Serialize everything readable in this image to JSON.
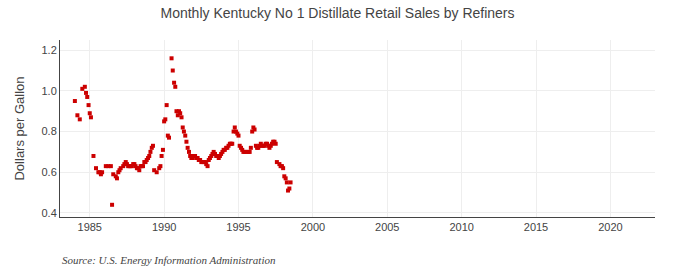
{
  "chart_data": {
    "type": "scatter",
    "title": "Monthly Kentucky No 1 Distillate Retail Sales by Refiners",
    "ylabel": "Dollars per Gallon",
    "annotations": [
      "Source: U.S. Energy Information Administration"
    ],
    "color": "#cc0000",
    "marker": "square",
    "grid": true,
    "xlim": [
      1983.0,
      2023.0
    ],
    "ylim": [
      0.38,
      1.25
    ],
    "xticks": [
      1985,
      1990,
      1995,
      2000,
      2005,
      2010,
      2015,
      2020
    ],
    "yticks": [
      0.4,
      0.6,
      0.8,
      {
        "value": 1.0,
        "label": "1.0"
      },
      1.2
    ],
    "x": [
      1984.0,
      1984.17,
      1984.33,
      1984.5,
      1984.67,
      1984.75,
      1984.83,
      1984.92,
      1985.0,
      1985.08,
      1985.25,
      1985.42,
      1985.58,
      1985.67,
      1985.75,
      1985.83,
      1986.08,
      1986.25,
      1986.42,
      1986.5,
      1986.58,
      1986.75,
      1986.83,
      1986.92,
      1987.0,
      1987.08,
      1987.25,
      1987.33,
      1987.42,
      1987.5,
      1987.58,
      1987.67,
      1987.75,
      1987.83,
      1987.92,
      1988.0,
      1988.08,
      1988.17,
      1988.25,
      1988.33,
      1988.42,
      1988.5,
      1988.58,
      1988.67,
      1988.75,
      1988.83,
      1988.92,
      1989.0,
      1989.08,
      1989.17,
      1989.25,
      1989.33,
      1989.5,
      1989.67,
      1989.75,
      1989.83,
      1989.92,
      1990.0,
      1990.08,
      1990.17,
      1990.25,
      1990.33,
      1990.5,
      1990.58,
      1990.67,
      1990.75,
      1990.83,
      1990.92,
      1991.0,
      1991.08,
      1991.17,
      1991.25,
      1991.33,
      1991.42,
      1991.5,
      1991.58,
      1991.67,
      1991.75,
      1991.83,
      1991.92,
      1992.0,
      1992.08,
      1992.17,
      1992.25,
      1992.33,
      1992.42,
      1992.5,
      1992.58,
      1992.67,
      1992.75,
      1992.83,
      1992.92,
      1993.0,
      1993.08,
      1993.17,
      1993.25,
      1993.33,
      1993.42,
      1993.5,
      1993.58,
      1993.67,
      1993.75,
      1993.83,
      1993.92,
      1994.0,
      1994.08,
      1994.17,
      1994.25,
      1994.33,
      1994.42,
      1994.5,
      1994.58,
      1994.67,
      1994.75,
      1994.83,
      1994.92,
      1995.0,
      1995.08,
      1995.17,
      1995.25,
      1995.33,
      1995.42,
      1995.5,
      1995.67,
      1995.75,
      1995.83,
      1995.92,
      1996.0,
      1996.08,
      1996.17,
      1996.25,
      1996.33,
      1996.42,
      1996.5,
      1996.58,
      1996.67,
      1996.75,
      1996.83,
      1996.92,
      1997.0,
      1997.08,
      1997.17,
      1997.25,
      1997.33,
      1997.42,
      1997.5,
      1997.58,
      1997.75,
      1997.83,
      1997.92,
      1998.0,
      1998.08,
      1998.17,
      1998.25,
      1998.33,
      1998.42,
      1998.5
    ],
    "values": [
      0.95,
      0.88,
      0.86,
      1.01,
      1.02,
      0.99,
      0.97,
      0.93,
      0.89,
      0.87,
      0.68,
      0.62,
      0.6,
      0.6,
      0.59,
      0.6,
      0.63,
      0.63,
      0.63,
      0.44,
      0.59,
      0.58,
      0.57,
      0.6,
      0.61,
      0.62,
      0.63,
      0.64,
      0.65,
      0.64,
      0.63,
      0.63,
      0.63,
      0.63,
      0.64,
      0.64,
      0.63,
      0.62,
      0.62,
      0.61,
      0.63,
      0.63,
      0.63,
      0.65,
      0.65,
      0.66,
      0.67,
      0.68,
      0.7,
      0.72,
      0.73,
      0.61,
      0.6,
      0.62,
      0.63,
      0.68,
      0.71,
      0.85,
      0.86,
      0.93,
      0.78,
      0.77,
      1.16,
      1.1,
      1.04,
      1.02,
      0.9,
      0.88,
      0.9,
      0.89,
      0.87,
      0.82,
      0.8,
      0.78,
      0.75,
      0.72,
      0.7,
      0.68,
      0.67,
      0.67,
      0.68,
      0.68,
      0.67,
      0.67,
      0.66,
      0.66,
      0.65,
      0.65,
      0.65,
      0.65,
      0.64,
      0.63,
      0.66,
      0.67,
      0.68,
      0.69,
      0.7,
      0.69,
      0.68,
      0.68,
      0.67,
      0.68,
      0.69,
      0.7,
      0.71,
      0.71,
      0.72,
      0.72,
      0.73,
      0.74,
      0.74,
      0.74,
      0.8,
      0.82,
      0.8,
      0.79,
      0.78,
      0.73,
      0.72,
      0.71,
      0.7,
      0.7,
      0.7,
      0.7,
      0.7,
      0.72,
      0.8,
      0.82,
      0.81,
      0.73,
      0.72,
      0.72,
      0.73,
      0.74,
      0.73,
      0.73,
      0.73,
      0.74,
      0.74,
      0.73,
      0.72,
      0.73,
      0.74,
      0.75,
      0.75,
      0.74,
      0.65,
      0.64,
      0.63,
      0.63,
      0.62,
      0.58,
      0.57,
      0.55,
      0.51,
      0.52,
      0.55
    ]
  }
}
